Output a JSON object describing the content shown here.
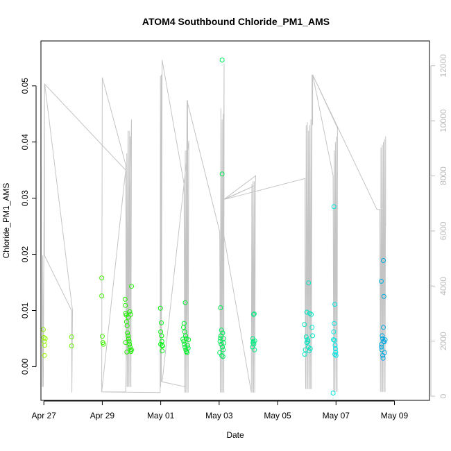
{
  "chart_data": {
    "type": "scatter",
    "title": "ATOM4 Southbound Chloride_PM1_AMS",
    "xlabel": "Date",
    "ylabel": "Chloride_PM1_AMS",
    "xlim": [
      -0.1,
      13.2
    ],
    "ylim": [
      -0.006,
      0.058
    ],
    "y_ticks": [
      0.0,
      0.01,
      0.02,
      0.03,
      0.04,
      0.05
    ],
    "y_tick_labels": [
      "0.00",
      "0.01",
      "0.02",
      "0.03",
      "0.04",
      "0.05"
    ],
    "x_ticks": [
      0,
      2,
      4,
      6,
      8,
      10,
      12
    ],
    "x_tick_labels": [
      "Apr 27",
      "Apr 29",
      "May 01",
      "May 03",
      "May 05",
      "May 07",
      "May 09"
    ],
    "x_unit": "days since Apr 27",
    "y2_lim": [
      -150,
      12900
    ],
    "y2_ticks": [
      0,
      2000,
      4000,
      6000,
      8000,
      10000,
      12000
    ],
    "y2_tick_labels": [
      "0",
      "2000",
      "4000",
      "6000",
      "8000",
      "10000",
      "12000"
    ],
    "points": [
      [
        -0.02,
        0.0066
      ],
      [
        0.0,
        0.0052
      ],
      [
        0.01,
        0.0045
      ],
      [
        0.03,
        0.0038
      ],
      [
        0.05,
        0.005
      ],
      [
        0.02,
        0.002
      ],
      [
        0.95,
        0.0053
      ],
      [
        0.95,
        0.0037
      ],
      [
        1.98,
        0.0158
      ],
      [
        1.98,
        0.0126
      ],
      [
        2.0,
        0.0054
      ],
      [
        2.02,
        0.0043
      ],
      [
        2.04,
        0.004
      ],
      [
        2.78,
        0.012
      ],
      [
        2.79,
        0.0109
      ],
      [
        2.8,
        0.0095
      ],
      [
        2.82,
        0.0092
      ],
      [
        2.83,
        0.008
      ],
      [
        2.85,
        0.0073
      ],
      [
        2.86,
        0.006
      ],
      [
        2.88,
        0.0055
      ],
      [
        2.9,
        0.005
      ],
      [
        2.92,
        0.0045
      ],
      [
        2.93,
        0.004
      ],
      [
        2.95,
        0.0035
      ],
      [
        2.96,
        0.003
      ],
      [
        2.98,
        0.0027
      ],
      [
        2.8,
        0.0043
      ],
      [
        2.84,
        0.0026
      ],
      [
        2.89,
        0.0088
      ],
      [
        2.94,
        0.0098
      ],
      [
        2.97,
        0.0093
      ],
      [
        3.0,
        0.0143
      ],
      [
        3.0,
        0.003
      ],
      [
        3.99,
        0.0104
      ],
      [
        4.02,
        0.0078
      ],
      [
        4.0,
        0.0062
      ],
      [
        4.03,
        0.0055
      ],
      [
        4.04,
        0.0045
      ],
      [
        4.0,
        0.004
      ],
      [
        4.05,
        0.0038
      ],
      [
        4.06,
        0.0037
      ],
      [
        4.05,
        0.0028
      ],
      [
        4.84,
        0.0114
      ],
      [
        4.8,
        0.0077
      ],
      [
        4.78,
        0.007
      ],
      [
        4.82,
        0.0062
      ],
      [
        4.85,
        0.0055
      ],
      [
        4.87,
        0.005
      ],
      [
        4.79,
        0.0045
      ],
      [
        4.81,
        0.004
      ],
      [
        4.83,
        0.0035
      ],
      [
        4.86,
        0.003
      ],
      [
        4.88,
        0.0027
      ],
      [
        4.9,
        0.0025
      ],
      [
        4.76,
        0.0049
      ],
      [
        4.92,
        0.0038
      ],
      [
        4.94,
        0.0033
      ],
      [
        4.95,
        0.0048
      ],
      [
        6.1,
        0.0546
      ],
      [
        6.1,
        0.0343
      ],
      [
        6.05,
        0.0105
      ],
      [
        6.08,
        0.0065
      ],
      [
        6.12,
        0.006
      ],
      [
        6.06,
        0.0055
      ],
      [
        6.03,
        0.0045
      ],
      [
        6.07,
        0.004
      ],
      [
        6.11,
        0.0035
      ],
      [
        6.14,
        0.003
      ],
      [
        6.02,
        0.0025
      ],
      [
        6.09,
        0.002
      ],
      [
        6.13,
        0.0018
      ],
      [
        6.16,
        0.0042
      ],
      [
        6.04,
        0.0051
      ],
      [
        6.15,
        0.005
      ],
      [
        7.18,
        0.0093
      ],
      [
        7.2,
        0.0094
      ],
      [
        7.15,
        0.005
      ],
      [
        7.17,
        0.0045
      ],
      [
        7.19,
        0.004
      ],
      [
        7.14,
        0.0035
      ],
      [
        7.21,
        0.003
      ],
      [
        7.16,
        0.0042
      ],
      [
        7.22,
        0.0046
      ],
      [
        8.92,
        0.0075
      ],
      [
        8.98,
        0.0053
      ],
      [
        9.02,
        0.0048
      ],
      [
        9.0,
        0.0043
      ],
      [
        9.05,
        0.0035
      ],
      [
        8.95,
        0.003
      ],
      [
        8.93,
        0.0022
      ],
      [
        9.08,
        0.0028
      ],
      [
        9.12,
        0.0032
      ],
      [
        9.04,
        0.0045
      ],
      [
        9.06,
        0.0149
      ],
      [
        9.0,
        0.0097
      ],
      [
        9.1,
        0.0095
      ],
      [
        9.15,
        0.0093
      ],
      [
        9.18,
        0.007
      ],
      [
        9.2,
        0.0055
      ],
      [
        9.93,
        0.0285
      ],
      [
        9.96,
        0.0111
      ],
      [
        9.94,
        0.0077
      ],
      [
        9.92,
        0.0062
      ],
      [
        9.95,
        0.0047
      ],
      [
        9.97,
        0.0038
      ],
      [
        9.98,
        0.0032
      ],
      [
        9.99,
        0.0026
      ],
      [
        10.0,
        0.002
      ],
      [
        9.9,
        -0.0047
      ],
      [
        9.91,
        0.0048
      ],
      [
        9.96,
        0.0022
      ],
      [
        11.55,
        0.0152
      ],
      [
        11.62,
        0.0189
      ],
      [
        11.64,
        0.0125
      ],
      [
        11.62,
        0.007
      ],
      [
        11.58,
        0.0055
      ],
      [
        11.6,
        0.005
      ],
      [
        11.63,
        0.0045
      ],
      [
        11.56,
        0.004
      ],
      [
        11.57,
        0.003
      ],
      [
        11.66,
        0.0025
      ],
      [
        11.6,
        0.002
      ],
      [
        11.61,
        0.0015
      ],
      [
        11.55,
        0.0035
      ],
      [
        11.68,
        0.0048
      ],
      [
        11.65,
        0.0044
      ]
    ],
    "bg_line": [
      [
        -0.05,
        -0.0036
      ],
      [
        -0.04,
        0.0198
      ],
      [
        -0.02,
        -0.0036
      ],
      [
        0.0,
        0.0196
      ],
      [
        0.02,
        0.0503
      ],
      [
        0.02,
        0.0198
      ],
      [
        0.95,
        0.01
      ],
      [
        0.96,
        -0.0046
      ],
      [
        0.98,
        0.01
      ],
      [
        0.03,
        0.0503
      ],
      [
        2.8,
        0.035
      ],
      [
        1.98,
        -0.0045
      ],
      [
        2.0,
        0.0515
      ],
      [
        2.8,
        0.036
      ],
      [
        2.82,
        -0.0036
      ],
      [
        2.84,
        0.038
      ],
      [
        2.86,
        -0.0036
      ],
      [
        2.88,
        0.042
      ],
      [
        2.9,
        -0.0036
      ],
      [
        2.92,
        0.042
      ],
      [
        2.94,
        -0.0036
      ],
      [
        2.96,
        0.041
      ],
      [
        2.98,
        -0.0036
      ],
      [
        3.0,
        0.044
      ],
      [
        2.8,
        -0.0045
      ],
      [
        1.98,
        -0.0045
      ],
      [
        3.98,
        -0.0046
      ],
      [
        3.99,
        0.0518
      ],
      [
        4.0,
        -0.0036
      ],
      [
        4.02,
        0.052
      ],
      [
        4.02,
        -0.0027
      ],
      [
        4.05,
        0.0546
      ],
      [
        4.8,
        0.0325
      ],
      [
        4.82,
        -0.0046
      ],
      [
        4.84,
        0.0385
      ],
      [
        4.86,
        -0.0046
      ],
      [
        4.88,
        0.0385
      ],
      [
        4.9,
        -0.0046
      ],
      [
        4.92,
        0.0474
      ],
      [
        4.94,
        -0.0046
      ],
      [
        4.96,
        0.0402
      ],
      [
        4.05,
        -0.0027
      ],
      [
        4.86,
        -0.0036
      ],
      [
        4.9,
        0.0474
      ],
      [
        6.02,
        0.024
      ],
      [
        6.04,
        -0.0046
      ],
      [
        6.06,
        0.046
      ],
      [
        6.08,
        -0.0046
      ],
      [
        6.1,
        0.044
      ],
      [
        6.12,
        -0.0046
      ],
      [
        6.14,
        0.045
      ],
      [
        6.16,
        -0.0046
      ],
      [
        6.17,
        0.054
      ],
      [
        6.14,
        0.024
      ],
      [
        7.1,
        -0.0046
      ],
      [
        7.12,
        0.0325
      ],
      [
        7.14,
        -0.0046
      ],
      [
        7.16,
        0.033
      ],
      [
        7.18,
        -0.0046
      ],
      [
        7.2,
        0.033
      ],
      [
        7.22,
        -0.0046
      ],
      [
        7.24,
        0.032
      ],
      [
        7.25,
        0.034
      ],
      [
        6.17,
        0.0298
      ],
      [
        7.2,
        0.0322
      ],
      [
        6.2,
        0.0298
      ],
      [
        8.94,
        0.0335
      ],
      [
        8.94,
        0.02
      ],
      [
        8.96,
        -0.004
      ],
      [
        8.98,
        0.043
      ],
      [
        9.0,
        -0.004
      ],
      [
        9.02,
        0.0435
      ],
      [
        9.04,
        -0.004
      ],
      [
        9.06,
        0.042
      ],
      [
        9.08,
        -0.004
      ],
      [
        9.1,
        0.043
      ],
      [
        9.12,
        -0.004
      ],
      [
        9.14,
        0.044
      ],
      [
        9.16,
        -0.004
      ],
      [
        9.18,
        0.052
      ],
      [
        9.2,
        0.048
      ],
      [
        9.2,
        0.043
      ],
      [
        9.2,
        0.052
      ],
      [
        9.9,
        0.034
      ],
      [
        9.92,
        -0.0045
      ],
      [
        9.94,
        0.0385
      ],
      [
        9.96,
        -0.0045
      ],
      [
        9.98,
        0.04
      ],
      [
        10.0,
        -0.0045
      ],
      [
        10.02,
        0.041
      ],
      [
        10.04,
        -0.0045
      ],
      [
        10.05,
        0.0425
      ],
      [
        9.2,
        0.052
      ],
      [
        11.4,
        0.028
      ],
      [
        11.5,
        0.028
      ],
      [
        11.52,
        -0.0045
      ],
      [
        11.54,
        0.039
      ],
      [
        11.56,
        -0.0045
      ],
      [
        11.58,
        0.0395
      ],
      [
        11.6,
        -0.0045
      ],
      [
        11.62,
        0.04
      ],
      [
        11.64,
        -0.0045
      ],
      [
        11.66,
        0.0405
      ],
      [
        11.68,
        -0.0045
      ],
      [
        11.7,
        0.041
      ],
      [
        11.7,
        0.025
      ]
    ]
  }
}
